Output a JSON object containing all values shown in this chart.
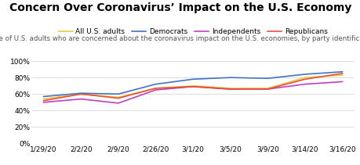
{
  "title": "Concern Over Coronavirus’ Impact on the U.S. Economy",
  "subtitle": "Share of U.S. adults who are concerned about the coronavirus impact on the U.S. economies, by party identification",
  "x_labels": [
    "1/29/20",
    "2/2/20",
    "2/9/20",
    "2/26/20",
    "3/1/20",
    "3/5/20",
    "3/9/20",
    "3/14/20",
    "3/16/20"
  ],
  "series": {
    "All U.S. adults": {
      "color": "#e8c840",
      "values": [
        0.54,
        0.6,
        0.56,
        0.67,
        0.7,
        0.67,
        0.67,
        0.8,
        0.83
      ]
    },
    "Democrats": {
      "color": "#4472c4",
      "values": [
        0.57,
        0.61,
        0.6,
        0.72,
        0.78,
        0.8,
        0.79,
        0.84,
        0.87
      ]
    },
    "Independents": {
      "color": "#bf40bf",
      "values": [
        0.5,
        0.54,
        0.49,
        0.65,
        0.69,
        0.66,
        0.66,
        0.72,
        0.75
      ]
    },
    "Republicans": {
      "color": "#e8503c",
      "values": [
        0.52,
        0.6,
        0.55,
        0.67,
        0.69,
        0.66,
        0.66,
        0.78,
        0.85
      ]
    }
  },
  "ylim": [
    0,
    1.0
  ],
  "yticks": [
    0.0,
    0.2,
    0.4,
    0.6,
    0.8,
    1.0
  ],
  "background_color": "#ffffff",
  "grid_color": "#dddddd",
  "title_fontsize": 10,
  "subtitle_fontsize": 6.2,
  "legend_fontsize": 6.5,
  "tick_fontsize": 6.5
}
